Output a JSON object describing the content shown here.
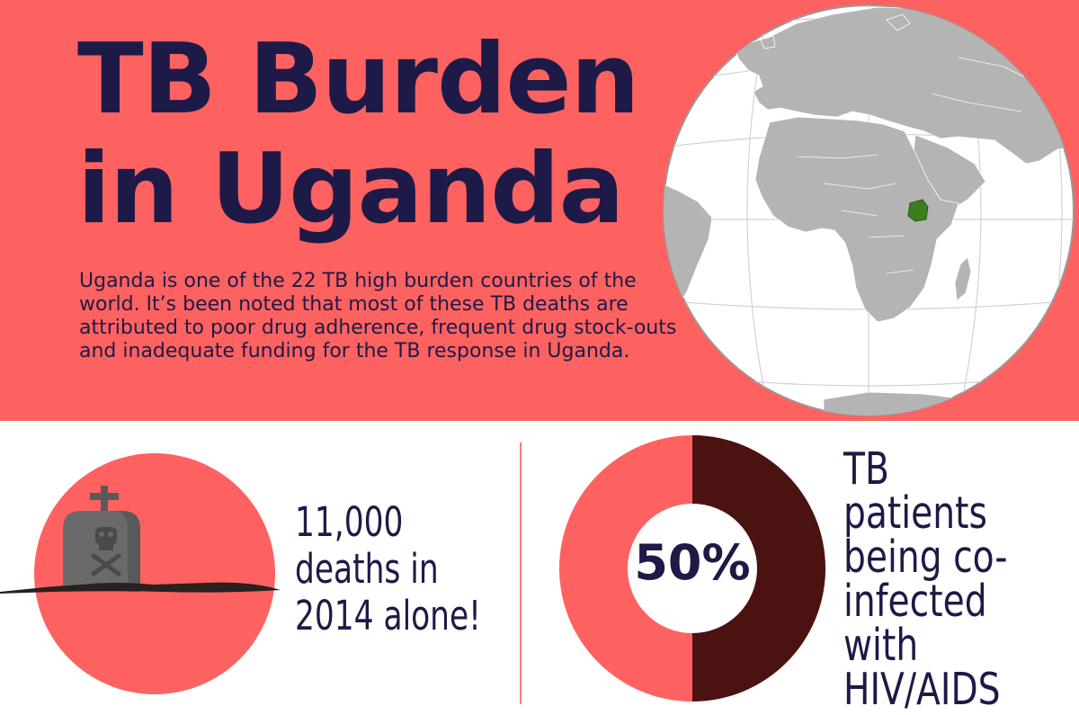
{
  "header": {
    "title_line1": "TB Burden",
    "title_line2": "in Uganda",
    "intro": "Uganda is one of the 22 TB high burden countries of the world. It’s been noted that most of these TB deaths are attributed to poor drug adherence, frequent drug stock-outs and inadequate funding for the TB response in Uganda."
  },
  "stats": {
    "deaths_line1": "11,000",
    "deaths_line2": "deaths in",
    "deaths_line3": "2014 alone!",
    "coinfection_percent": "50%",
    "coinfection_fraction": 0.5,
    "coinfection_line1": "TB patients",
    "coinfection_line2": "being co-",
    "coinfection_line3": "infected",
    "coinfection_line4": "with",
    "coinfection_line5": "HIV/AIDS"
  },
  "colors": {
    "banner": "#fe6260",
    "text": "#1e1a47",
    "donut_dark": "#4a1210",
    "uganda": "#3c7d1e",
    "land": "#b4b4b4"
  },
  "icons": [
    "globe-map",
    "tombstone-icon",
    "skull-crossbones-icon"
  ]
}
